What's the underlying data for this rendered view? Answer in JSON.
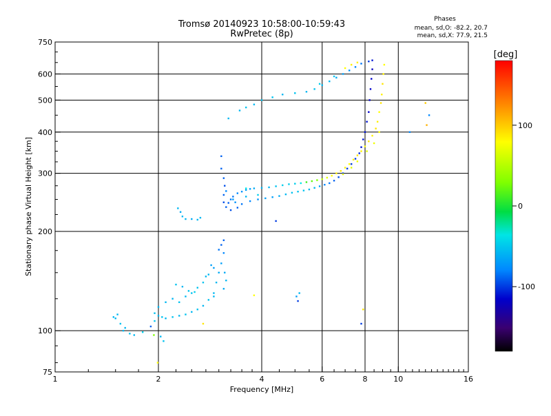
{
  "chart_data": {
    "type": "scatter",
    "title": "Tromsø 20140923 10:58:00-10:59:43",
    "subtitle": "RwPretec (8p)",
    "xlabel": "Frequency [MHz]",
    "ylabel": "Stationary phase Virtual Height [km]",
    "x_scale": "log2",
    "y_scale": "log",
    "xlim": [
      1,
      16
    ],
    "ylim": [
      75,
      750
    ],
    "x_ticks": [
      1,
      2,
      4,
      6,
      8,
      10,
      16
    ],
    "x_tick_labels": [
      "1",
      "2",
      "4",
      "6",
      "8",
      "10",
      "16"
    ],
    "y_ticks": [
      75,
      100,
      200,
      300,
      400,
      500,
      600,
      750
    ],
    "y_tick_labels": [
      "75",
      "100",
      "200",
      "300",
      "400",
      "500",
      "600",
      "750"
    ],
    "grid": true,
    "stats": {
      "heading": "Phases",
      "line_o": "mean, sd,O: -82.2, 20.7",
      "line_x": "mean, sd,X:  77.9, 21.5"
    },
    "colorbar": {
      "label": "[deg]",
      "range": [
        -180,
        180
      ],
      "ticks": [
        100,
        0,
        -100
      ],
      "tick_labels": [
        "100",
        "0",
        "-100"
      ],
      "colormap": "rainbow"
    },
    "series": [
      {
        "points": [
          [
            1.48,
            110,
            -60
          ],
          [
            1.52,
            112,
            -60
          ],
          [
            1.5,
            109,
            -60
          ],
          [
            1.55,
            105,
            -55
          ],
          [
            1.6,
            102,
            -60
          ],
          [
            1.58,
            100,
            -60
          ],
          [
            1.65,
            98,
            -55
          ],
          [
            1.7,
            97,
            -60
          ],
          [
            1.8,
            99,
            -50
          ],
          [
            1.95,
            107,
            -55
          ],
          [
            2.0,
            111,
            -60
          ],
          [
            2.05,
            110,
            -55
          ],
          [
            2.1,
            109,
            -60
          ],
          [
            2.2,
            110,
            -55
          ],
          [
            2.3,
            111,
            -60
          ],
          [
            2.4,
            112,
            -55
          ],
          [
            2.5,
            114,
            -60
          ],
          [
            2.6,
            116,
            -55
          ],
          [
            2.7,
            119,
            -60
          ],
          [
            2.8,
            124,
            -55
          ],
          [
            2.9,
            130,
            -60
          ],
          [
            2.95,
            140,
            -60
          ],
          [
            3.0,
            150,
            -65
          ],
          [
            3.05,
            160,
            -70
          ],
          [
            3.1,
            172,
            -80
          ],
          [
            2.9,
            155,
            -70
          ],
          [
            2.8,
            148,
            -60
          ],
          [
            2.7,
            140,
            -55
          ],
          [
            2.5,
            130,
            -55
          ],
          [
            2.3,
            122,
            -55
          ],
          [
            2.2,
            125,
            -60
          ],
          [
            2.1,
            122,
            -60
          ],
          [
            2.0,
            118,
            -60
          ],
          [
            1.95,
            113,
            -55
          ],
          [
            2.4,
            127,
            -60
          ],
          [
            2.6,
            135,
            -55
          ],
          [
            2.75,
            146,
            -60
          ],
          [
            2.85,
            158,
            -70
          ],
          [
            3.0,
            176,
            -85
          ],
          [
            3.05,
            182,
            -90
          ],
          [
            3.1,
            188,
            -90
          ],
          [
            3.12,
            150,
            -65
          ],
          [
            3.15,
            142,
            -60
          ],
          [
            3.1,
            134,
            -65
          ],
          [
            2.9,
            127,
            -60
          ],
          [
            2.25,
            138,
            -55
          ],
          [
            2.35,
            136,
            -60
          ],
          [
            2.45,
            132,
            -55
          ],
          [
            2.55,
            131,
            -50
          ],
          [
            1.9,
            103,
            -90
          ],
          [
            2.03,
            96,
            -60
          ],
          [
            2.07,
            93,
            -55
          ],
          [
            1.99,
            80,
            80
          ],
          [
            2.28,
            235,
            -60
          ],
          [
            2.35,
            222,
            -60
          ],
          [
            2.4,
            218,
            -60
          ],
          [
            2.5,
            218,
            -65
          ],
          [
            2.6,
            217,
            -60
          ],
          [
            2.65,
            220,
            -60
          ],
          [
            2.32,
            229,
            -65
          ],
          [
            3.05,
            338,
            -90
          ],
          [
            3.05,
            310,
            -90
          ],
          [
            3.1,
            290,
            -90
          ],
          [
            3.12,
            275,
            -95
          ],
          [
            3.1,
            258,
            -90
          ],
          [
            3.1,
            245,
            -95
          ],
          [
            3.15,
            237,
            -90
          ],
          [
            3.2,
            244,
            -90
          ],
          [
            3.25,
            250,
            -85
          ],
          [
            3.3,
            255,
            -85
          ],
          [
            3.4,
            261,
            -80
          ],
          [
            3.5,
            264,
            -75
          ],
          [
            3.6,
            267,
            -70
          ],
          [
            3.7,
            269,
            -70
          ],
          [
            3.8,
            270,
            -65
          ],
          [
            4.0,
            271,
            -60
          ],
          [
            4.2,
            272,
            -60
          ],
          [
            4.4,
            274,
            -55
          ],
          [
            4.6,
            276,
            -50
          ],
          [
            4.8,
            278,
            -50
          ],
          [
            5.0,
            279,
            -50
          ],
          [
            5.2,
            280,
            -40
          ],
          [
            5.4,
            282,
            20
          ],
          [
            5.6,
            284,
            30
          ],
          [
            5.8,
            286,
            40
          ],
          [
            6.0,
            288,
            60
          ],
          [
            6.2,
            291,
            70
          ],
          [
            3.25,
            232,
            -95
          ],
          [
            3.4,
            236,
            -90
          ],
          [
            3.5,
            242,
            -85
          ],
          [
            3.7,
            247,
            -80
          ],
          [
            3.9,
            250,
            -75
          ],
          [
            4.1,
            252,
            -70
          ],
          [
            4.3,
            254,
            -70
          ],
          [
            4.5,
            256,
            -65
          ],
          [
            4.7,
            259,
            -60
          ],
          [
            4.9,
            262,
            -55
          ],
          [
            5.1,
            264,
            -55
          ],
          [
            5.3,
            266,
            -55
          ],
          [
            5.5,
            268,
            -60
          ],
          [
            5.7,
            271,
            -60
          ],
          [
            5.9,
            274,
            -70
          ],
          [
            6.1,
            277,
            -80
          ],
          [
            6.3,
            280,
            -85
          ],
          [
            6.5,
            285,
            -90
          ],
          [
            6.7,
            292,
            -95
          ],
          [
            6.9,
            300,
            -100
          ],
          [
            7.1,
            310,
            -100
          ],
          [
            7.3,
            320,
            -100
          ],
          [
            7.5,
            332,
            -100
          ],
          [
            7.7,
            345,
            -105
          ],
          [
            7.8,
            360,
            -110
          ],
          [
            7.9,
            380,
            -110
          ],
          [
            8.0,
            400,
            -110
          ],
          [
            8.1,
            430,
            -110
          ],
          [
            8.2,
            460,
            -115
          ],
          [
            8.25,
            500,
            -115
          ],
          [
            8.3,
            540,
            -115
          ],
          [
            8.35,
            580,
            -115
          ],
          [
            8.4,
            620,
            -120
          ],
          [
            6.4,
            295,
            80
          ],
          [
            6.6,
            300,
            85
          ],
          [
            6.8,
            305,
            90
          ],
          [
            7.0,
            312,
            85
          ],
          [
            7.2,
            320,
            80
          ],
          [
            7.4,
            330,
            85
          ],
          [
            7.6,
            340,
            90
          ],
          [
            7.8,
            350,
            85
          ],
          [
            8.0,
            362,
            80
          ],
          [
            8.2,
            375,
            90
          ],
          [
            8.4,
            390,
            85
          ],
          [
            8.6,
            410,
            90
          ],
          [
            8.7,
            430,
            85
          ],
          [
            8.8,
            460,
            80
          ],
          [
            8.9,
            490,
            90
          ],
          [
            8.95,
            520,
            85
          ],
          [
            9.0,
            560,
            90
          ],
          [
            9.05,
            600,
            85
          ],
          [
            9.1,
            640,
            80
          ],
          [
            7.3,
            312,
            70
          ],
          [
            7.6,
            326,
            75
          ],
          [
            8.1,
            350,
            70
          ],
          [
            8.5,
            370,
            75
          ],
          [
            8.8,
            400,
            80
          ],
          [
            6.9,
            298,
            75
          ],
          [
            3.3,
            250,
            -70
          ],
          [
            3.15,
            265,
            -80
          ],
          [
            3.35,
            245,
            -75
          ],
          [
            3.6,
            255,
            -60
          ],
          [
            3.9,
            258,
            -50
          ],
          [
            3.2,
            440,
            -60
          ],
          [
            3.45,
            465,
            -60
          ],
          [
            3.6,
            475,
            -55
          ],
          [
            3.8,
            485,
            -60
          ],
          [
            4.0,
            500,
            -55
          ],
          [
            4.3,
            510,
            -55
          ],
          [
            4.6,
            520,
            -60
          ],
          [
            5.0,
            525,
            -55
          ],
          [
            5.4,
            530,
            -60
          ],
          [
            5.7,
            540,
            -55
          ],
          [
            6.0,
            555,
            -60
          ],
          [
            6.3,
            570,
            -60
          ],
          [
            6.6,
            585,
            -65
          ],
          [
            6.9,
            600,
            -70
          ],
          [
            7.2,
            615,
            -75
          ],
          [
            7.5,
            630,
            -80
          ],
          [
            7.8,
            645,
            -85
          ],
          [
            8.2,
            655,
            -100
          ],
          [
            5.9,
            560,
            -50
          ],
          [
            6.5,
            590,
            -55
          ],
          [
            7.0,
            625,
            80
          ],
          [
            7.3,
            640,
            85
          ],
          [
            7.6,
            650,
            85
          ],
          [
            8.4,
            660,
            -110
          ],
          [
            4.4,
            215,
            -100
          ],
          [
            5.15,
            130,
            -60
          ],
          [
            5.05,
            127,
            -70
          ],
          [
            5.1,
            123,
            -100
          ],
          [
            3.8,
            128,
            80
          ],
          [
            7.8,
            105,
            -100
          ],
          [
            7.9,
            116,
            90
          ],
          [
            10.8,
            400,
            -80
          ],
          [
            12.3,
            450,
            -80
          ],
          [
            12.0,
            490,
            100
          ],
          [
            12.1,
            420,
            110
          ],
          [
            2.7,
            105,
            90
          ],
          [
            1.94,
            97,
            40
          ],
          [
            3.6,
            270,
            -40
          ]
        ]
      }
    ]
  }
}
